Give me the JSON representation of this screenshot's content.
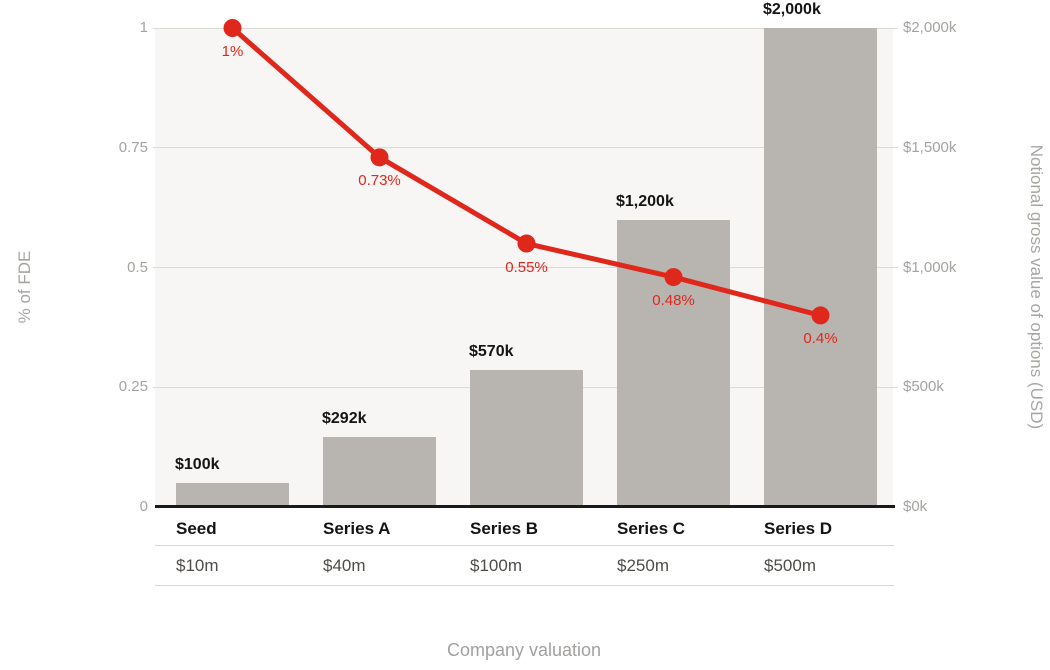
{
  "chart_data": {
    "type": "combo-bar-line",
    "categories": [
      "Seed",
      "Series A",
      "Series B",
      "Series C",
      "Series D"
    ],
    "category_valuations": [
      "$10m",
      "$40m",
      "$100m",
      "$250m",
      "$500m"
    ],
    "xlabel": "Company valuation",
    "left_axis": {
      "title": "% of FDE",
      "tick_values": [
        0,
        0.25,
        0.5,
        0.75,
        1
      ],
      "tick_labels": [
        "0",
        "0.25",
        "0.5",
        "0.75",
        "1"
      ],
      "min": 0,
      "max": 1
    },
    "right_axis": {
      "title": "Notional gross value of options (USD)",
      "tick_values": [
        0,
        500,
        1000,
        1500,
        2000
      ],
      "tick_labels": [
        "$0k",
        "$500k",
        "$1,000k",
        "$1,500k",
        "$2,000k"
      ],
      "min": 0,
      "max": 2000
    },
    "series": [
      {
        "name": "Notional gross value of options (USD)",
        "type": "bar",
        "axis": "right",
        "values": [
          100,
          292,
          570,
          1200,
          2000
        ],
        "data_labels": [
          "$100k",
          "$292k",
          "$570k",
          "$1,200k",
          "$2,000k"
        ],
        "color": "#b8b4af"
      },
      {
        "name": "% of FDE",
        "type": "line",
        "axis": "left",
        "values": [
          1,
          0.73,
          0.55,
          0.48,
          0.4
        ],
        "data_labels": [
          "1%",
          "0.73%",
          "0.55%",
          "0.48%",
          "0.4%"
        ],
        "color": "#e0271c"
      }
    ],
    "grid": true,
    "legend_position": "none",
    "colors": {
      "plot_background": "#f7f6f4",
      "gridline": "#dcdad7",
      "baseline": "#1a1a1a",
      "tick_text": "#a5a3a0",
      "bar": "#b8b4af",
      "line": "#e0271c"
    }
  }
}
